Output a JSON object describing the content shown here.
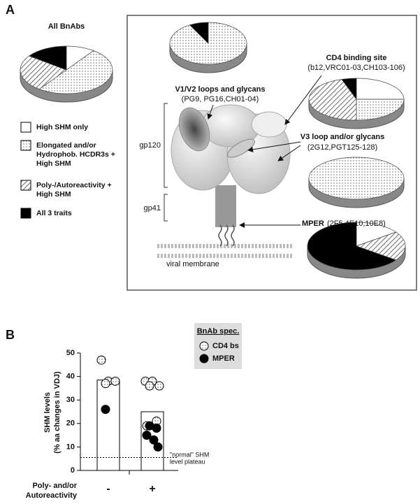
{
  "panels": {
    "a": "A",
    "b": "B"
  },
  "diagram": {
    "gp120": "gp120",
    "gp41": "gp41",
    "membrane": "viral membrane"
  },
  "chart_data": [
    {
      "type": "pie",
      "title": "All BnAbs",
      "categories": [
        "High SHM only",
        "Elongated and/or Hydrophob. HCDR3s + High SHM",
        "Poly-/Autoreactivity + High SHM",
        "All 3 traits"
      ],
      "values": [
        10,
        50,
        25,
        15
      ],
      "fills": [
        "white",
        "dots",
        "hatch",
        "black"
      ]
    },
    {
      "type": "pie",
      "title": "V1/V2 loops and glycans",
      "subtitle": "(PG9, PG16,CH01-04)",
      "values": [
        0,
        92,
        0,
        8
      ]
    },
    {
      "type": "pie",
      "title": "CD4 binding site",
      "subtitle": "(b12,VRC01-03,CH103-106)",
      "values": [
        25,
        25,
        45,
        5
      ]
    },
    {
      "type": "pie",
      "title": "V3 loop and/or glycans",
      "subtitle": "(2G12,PGT125-128)",
      "values": [
        0,
        100,
        0,
        0
      ]
    },
    {
      "type": "pie",
      "title": "MPER",
      "subtitle": "(2F5,4E10,10E8)",
      "values": [
        15,
        0,
        20,
        65
      ]
    },
    {
      "type": "bar",
      "categories": [
        "-",
        "+"
      ],
      "values": [
        38.5,
        25
      ],
      "ylabel": [
        "SHM levels",
        "(% aa changes in VDJ)"
      ],
      "xlabel": [
        "Poly- and/or",
        "Autoreactivity"
      ],
      "ylim": [
        0,
        50
      ],
      "yticks": [
        0,
        10,
        20,
        30,
        40,
        50
      ],
      "legend_title": "BnAb spec.",
      "series": [
        {
          "name": "CD4 bs",
          "fill": "dots",
          "values": [
            [
              47,
              38,
              38,
              37
            ],
            [
              38,
              38,
              36,
              36,
              21,
              19
            ]
          ]
        },
        {
          "name": "MPER",
          "fill": "black",
          "values": [
            [
              26
            ],
            [
              19,
              18,
              15,
              13,
              10
            ]
          ]
        }
      ],
      "reference_line": {
        "value": 5.5,
        "label": [
          "\"normal\" SHM",
          "level plateau"
        ]
      }
    }
  ]
}
